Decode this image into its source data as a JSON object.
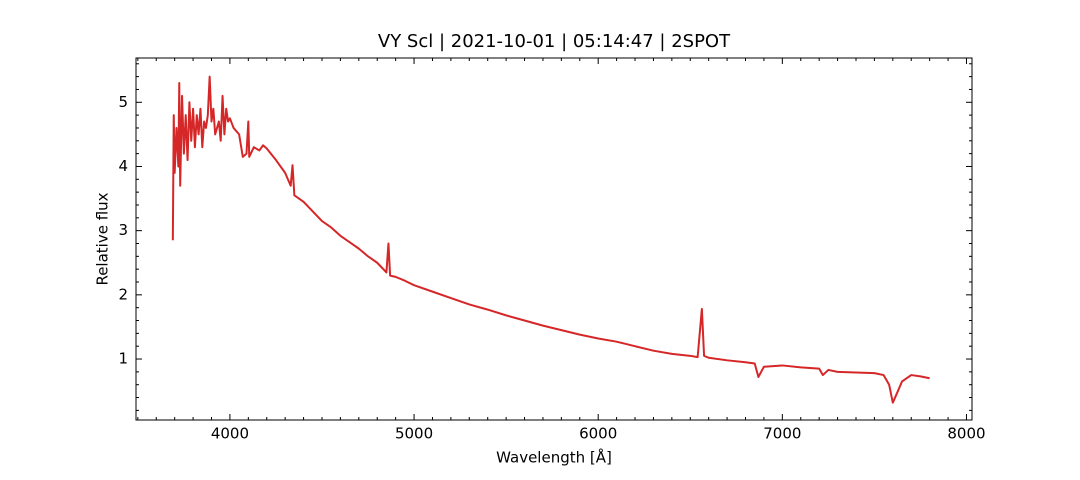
{
  "chart_data": {
    "type": "line",
    "title": "VY Scl | 2021-10-01 | 05:14:47 | 2SPOT",
    "xlabel": "Wavelength [Å]",
    "ylabel": "Relative flux",
    "xlim": [
      3490,
      8030
    ],
    "ylim": [
      0.05,
      5.69
    ],
    "xticks": [
      4000,
      5000,
      6000,
      7000,
      8000
    ],
    "yticks": [
      1,
      2,
      3,
      4,
      5
    ],
    "xminorticks": [
      3500,
      3600,
      3700,
      3800,
      3900,
      4100,
      4200,
      4300,
      4400,
      4500,
      4600,
      4700,
      4800,
      4900,
      5100,
      5200,
      5300,
      5400,
      5500,
      5600,
      5700,
      5800,
      5900,
      6100,
      6200,
      6300,
      6400,
      6500,
      6600,
      6700,
      6800,
      6900,
      7100,
      7200,
      7300,
      7400,
      7500,
      7600,
      7700,
      7800,
      7900
    ],
    "yminorticks": [
      0.2,
      0.4,
      0.6,
      0.8,
      1.2,
      1.4,
      1.6,
      1.8,
      2.2,
      2.4,
      2.6,
      2.8,
      3.2,
      3.4,
      3.6,
      3.8,
      4.2,
      4.4,
      4.6,
      4.8,
      5.2,
      5.4,
      5.6
    ],
    "grid": false,
    "series": [
      {
        "color": "#d62728",
        "x": [
          3690,
          3695,
          3700,
          3710,
          3720,
          3725,
          3730,
          3740,
          3750,
          3760,
          3770,
          3780,
          3790,
          3800,
          3810,
          3820,
          3830,
          3840,
          3850,
          3860,
          3870,
          3880,
          3890,
          3900,
          3910,
          3920,
          3930,
          3940,
          3950,
          3960,
          3970,
          3980,
          3990,
          4000,
          4020,
          4050,
          4070,
          4090,
          4100,
          4105,
          4130,
          4160,
          4180,
          4200,
          4250,
          4300,
          4330,
          4340,
          4350,
          4400,
          4450,
          4500,
          4550,
          4600,
          4650,
          4700,
          4750,
          4800,
          4850,
          4861,
          4870,
          4900,
          4950,
          5000,
          5100,
          5200,
          5300,
          5400,
          5500,
          5600,
          5700,
          5800,
          5900,
          6000,
          6100,
          6200,
          6300,
          6400,
          6500,
          6540,
          6563,
          6575,
          6600,
          6700,
          6800,
          6850,
          6870,
          6900,
          7000,
          7100,
          7200,
          7220,
          7250,
          7300,
          7400,
          7500,
          7550,
          7580,
          7600,
          7620,
          7650,
          7700,
          7750,
          7800
        ],
        "values": [
          2.85,
          4.8,
          3.9,
          4.6,
          4.0,
          5.3,
          3.7,
          5.1,
          4.2,
          4.8,
          4.1,
          5.0,
          4.4,
          4.9,
          4.3,
          4.8,
          4.5,
          4.9,
          4.3,
          4.7,
          4.6,
          4.8,
          5.4,
          4.7,
          4.9,
          4.5,
          4.6,
          4.7,
          4.4,
          5.1,
          4.5,
          4.9,
          4.7,
          4.75,
          4.6,
          4.5,
          4.15,
          4.2,
          4.7,
          4.15,
          4.3,
          4.25,
          4.33,
          4.28,
          4.1,
          3.9,
          3.7,
          4.02,
          3.55,
          3.45,
          3.3,
          3.15,
          3.05,
          2.92,
          2.82,
          2.72,
          2.6,
          2.5,
          2.35,
          2.8,
          2.3,
          2.28,
          2.22,
          2.15,
          2.05,
          1.95,
          1.85,
          1.77,
          1.68,
          1.6,
          1.52,
          1.45,
          1.38,
          1.32,
          1.27,
          1.2,
          1.13,
          1.08,
          1.05,
          1.03,
          1.78,
          1.05,
          1.02,
          0.98,
          0.95,
          0.93,
          0.72,
          0.88,
          0.9,
          0.87,
          0.85,
          0.75,
          0.83,
          0.8,
          0.79,
          0.78,
          0.75,
          0.6,
          0.32,
          0.45,
          0.65,
          0.75,
          0.73,
          0.7
        ]
      }
    ]
  }
}
